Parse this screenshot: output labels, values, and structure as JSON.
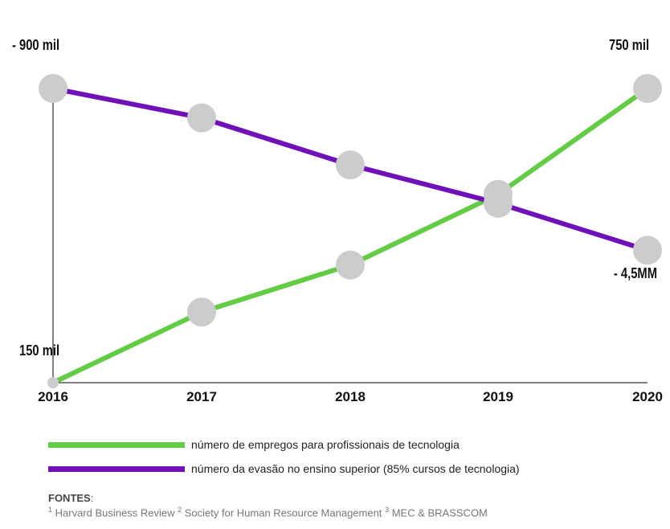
{
  "chart_data": {
    "type": "line",
    "categories": [
      "2016",
      "2017",
      "2018",
      "2019",
      "2020"
    ],
    "series": [
      {
        "name": "número de empregos para profissionais de tecnologia",
        "color": "#62cc44",
        "values": [
          0.0,
          0.24,
          0.4,
          0.64,
          1.0
        ],
        "start_label": "150 mil",
        "end_label": "750 mil"
      },
      {
        "name": "número da evasão no ensino superior (85% cursos de tecnologia)",
        "color": "#7010b8",
        "values": [
          1.0,
          0.9,
          0.74,
          0.61,
          0.45
        ],
        "start_label": "- 900 mil",
        "end_label": "- 4,5MM"
      }
    ],
    "marker_color": "#cccccc",
    "grid": false
  },
  "sources": {
    "label": "FONTES",
    "colon": ":",
    "items": [
      {
        "num": "1",
        "text": "Harvard Business Review"
      },
      {
        "num": "2",
        "text": "Society for Human Resource Management"
      },
      {
        "num": "3",
        "text": "MEC & BRASSCOM"
      }
    ]
  }
}
